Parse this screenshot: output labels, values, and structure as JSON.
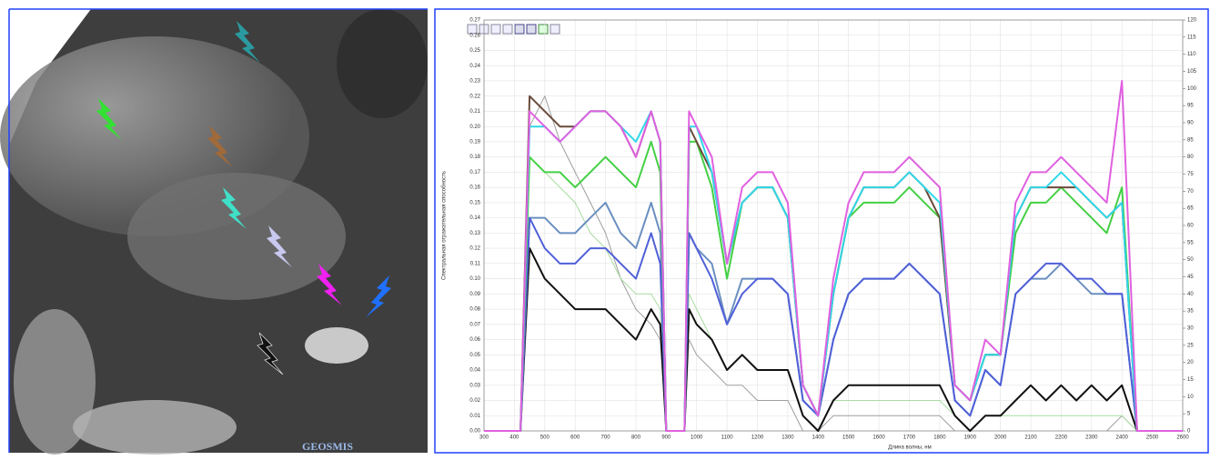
{
  "page": {
    "watermark": "GEOSMIS"
  },
  "chart_data": {
    "type": "line",
    "x_label": "Длина волны, нм",
    "y_label": "Спектральная отражательная способность",
    "x": [
      300,
      400,
      420,
      450,
      500,
      550,
      600,
      650,
      700,
      750,
      800,
      850,
      880,
      900,
      960,
      975,
      1000,
      1050,
      1100,
      1150,
      1200,
      1250,
      1300,
      1350,
      1400,
      1450,
      1500,
      1550,
      1600,
      1650,
      1700,
      1750,
      1800,
      1850,
      1900,
      1950,
      2000,
      2050,
      2100,
      2150,
      2200,
      2250,
      2300,
      2350,
      2400,
      2450,
      2500,
      2600
    ],
    "series": [
      {
        "color": "#9e9e9e",
        "width": 1,
        "values": [
          0,
          0,
          0,
          0.2,
          0.22,
          0.19,
          0.17,
          0.15,
          0.13,
          0.1,
          0.08,
          0.07,
          0.06,
          0,
          0,
          0.06,
          0.05,
          0.04,
          0.03,
          0.03,
          0.02,
          0.02,
          0.02,
          0,
          0,
          0.01,
          0.01,
          0.01,
          0.01,
          0.01,
          0.01,
          0.01,
          0.01,
          0,
          0,
          0,
          0,
          0,
          0,
          0,
          0,
          0,
          0,
          0,
          0.01,
          0,
          0,
          0
        ]
      },
      {
        "color": "#a8dca0",
        "width": 1,
        "values": [
          0,
          0,
          0,
          0.18,
          0.17,
          0.16,
          0.15,
          0.13,
          0.12,
          0.1,
          0.09,
          0.09,
          0.08,
          0,
          0,
          0.09,
          0.08,
          0.06,
          0.04,
          0.05,
          0.04,
          0.04,
          0.04,
          0.01,
          0,
          0.02,
          0.02,
          0.02,
          0.02,
          0.02,
          0.02,
          0.02,
          0.02,
          0.01,
          0,
          0.01,
          0.01,
          0.01,
          0.01,
          0.01,
          0.01,
          0.01,
          0.01,
          0.01,
          0.01,
          0,
          0,
          0
        ]
      },
      {
        "color": "#111111",
        "width": 2,
        "values": [
          0,
          0,
          0,
          0.12,
          0.1,
          0.09,
          0.08,
          0.08,
          0.08,
          0.07,
          0.06,
          0.08,
          0.07,
          0,
          0,
          0.08,
          0.07,
          0.06,
          0.04,
          0.05,
          0.04,
          0.04,
          0.04,
          0.01,
          0,
          0.02,
          0.03,
          0.03,
          0.03,
          0.03,
          0.03,
          0.03,
          0.03,
          0.01,
          0,
          0.01,
          0.01,
          0.02,
          0.03,
          0.02,
          0.03,
          0.02,
          0.03,
          0.02,
          0.03,
          0,
          0,
          0
        ]
      },
      {
        "color": "#6a8fc0",
        "width": 2,
        "values": [
          0,
          0,
          0,
          0.14,
          0.14,
          0.13,
          0.13,
          0.14,
          0.15,
          0.13,
          0.12,
          0.15,
          0.13,
          0,
          0,
          0.13,
          0.12,
          0.11,
          0.07,
          0.1,
          0.1,
          0.1,
          0.09,
          0.02,
          0.01,
          0.06,
          0.09,
          0.1,
          0.1,
          0.1,
          0.11,
          0.1,
          0.09,
          0.02,
          0.01,
          0.04,
          0.03,
          0.09,
          0.1,
          0.1,
          0.11,
          0.1,
          0.09,
          0.09,
          0.09,
          0,
          0,
          0
        ]
      },
      {
        "color": "#5060d8",
        "width": 2,
        "values": [
          0,
          0,
          0,
          0.14,
          0.12,
          0.11,
          0.11,
          0.12,
          0.12,
          0.11,
          0.1,
          0.13,
          0.11,
          0,
          0,
          0.13,
          0.12,
          0.1,
          0.07,
          0.09,
          0.1,
          0.1,
          0.09,
          0.02,
          0.01,
          0.06,
          0.09,
          0.1,
          0.1,
          0.1,
          0.11,
          0.1,
          0.09,
          0.02,
          0.01,
          0.04,
          0.03,
          0.09,
          0.1,
          0.11,
          0.11,
          0.1,
          0.1,
          0.09,
          0.09,
          0,
          0,
          0
        ]
      },
      {
        "color": "#44d044",
        "width": 2,
        "values": [
          0,
          0,
          0,
          0.18,
          0.17,
          0.17,
          0.16,
          0.17,
          0.18,
          0.17,
          0.16,
          0.19,
          0.17,
          0,
          0,
          0.19,
          0.19,
          0.16,
          0.1,
          0.15,
          0.16,
          0.16,
          0.14,
          0.03,
          0.01,
          0.09,
          0.14,
          0.15,
          0.15,
          0.15,
          0.16,
          0.15,
          0.14,
          0.03,
          0.02,
          0.05,
          0.05,
          0.13,
          0.15,
          0.15,
          0.16,
          0.15,
          0.14,
          0.13,
          0.16,
          0,
          0,
          0
        ]
      },
      {
        "color": "#6b4a3a",
        "width": 2,
        "values": [
          0,
          0,
          0,
          0.22,
          0.21,
          0.2,
          0.2,
          0.21,
          0.21,
          0.2,
          0.18,
          0.21,
          0.19,
          0,
          0,
          0.2,
          0.19,
          0.17,
          0.11,
          0.15,
          0.16,
          0.16,
          0.14,
          0.03,
          0.01,
          0.09,
          0.14,
          0.16,
          0.16,
          0.16,
          0.17,
          0.16,
          0.14,
          0.03,
          0.02,
          0.05,
          0.05,
          0.14,
          0.16,
          0.16,
          0.16,
          0.16,
          0.15,
          0.14,
          0.15,
          0,
          0,
          0
        ]
      },
      {
        "color": "#30d8e8",
        "width": 2,
        "values": [
          0,
          0,
          0,
          0.2,
          0.2,
          0.19,
          0.2,
          0.21,
          0.21,
          0.2,
          0.19,
          0.21,
          0.19,
          0,
          0,
          0.2,
          0.2,
          0.17,
          0.11,
          0.15,
          0.16,
          0.16,
          0.14,
          0.03,
          0.01,
          0.09,
          0.14,
          0.16,
          0.16,
          0.16,
          0.17,
          0.16,
          0.15,
          0.03,
          0.02,
          0.05,
          0.05,
          0.14,
          0.16,
          0.16,
          0.17,
          0.16,
          0.15,
          0.14,
          0.15,
          0,
          0,
          0
        ]
      },
      {
        "color": "#e060e0",
        "width": 2,
        "values": [
          0,
          0,
          0,
          0.21,
          0.2,
          0.19,
          0.2,
          0.21,
          0.21,
          0.2,
          0.18,
          0.21,
          0.19,
          0,
          0,
          0.21,
          0.2,
          0.18,
          0.11,
          0.16,
          0.17,
          0.17,
          0.15,
          0.03,
          0.01,
          0.1,
          0.15,
          0.17,
          0.17,
          0.17,
          0.18,
          0.17,
          0.16,
          0.03,
          0.02,
          0.06,
          0.05,
          0.15,
          0.17,
          0.17,
          0.18,
          0.17,
          0.16,
          0.15,
          0.23,
          0,
          0,
          0
        ]
      }
    ],
    "xlim": [
      300,
      2600
    ],
    "xticks": [
      300,
      400,
      500,
      600,
      700,
      800,
      900,
      1000,
      1100,
      1200,
      1300,
      1400,
      1500,
      1600,
      1700,
      1800,
      1900,
      2000,
      2100,
      2200,
      2300,
      2400,
      2500,
      2600
    ],
    "ylim": [
      0,
      0.27
    ],
    "yticks": [
      {
        "value": 0,
        "label": "0.00"
      },
      {
        "value": 0.01,
        "label": "0.01"
      },
      {
        "value": 0.02,
        "label": "0.02"
      },
      {
        "value": 0.03,
        "label": "0.03"
      },
      {
        "value": 0.04,
        "label": "0.04"
      },
      {
        "value": 0.05,
        "label": "0.05"
      },
      {
        "value": 0.06,
        "label": "0.06"
      },
      {
        "value": 0.07,
        "label": "0.07"
      },
      {
        "value": 0.08,
        "label": "0.08"
      },
      {
        "value": 0.09,
        "label": "0.09"
      },
      {
        "value": 0.1,
        "label": "0.10"
      },
      {
        "value": 0.11,
        "label": "0.11"
      },
      {
        "value": 0.12,
        "label": "0.12"
      },
      {
        "value": 0.13,
        "label": "0.13"
      },
      {
        "value": 0.14,
        "label": "0.14"
      },
      {
        "value": 0.15,
        "label": "0.15"
      },
      {
        "value": 0.16,
        "label": "0.16"
      },
      {
        "value": 0.17,
        "label": "0.17"
      },
      {
        "value": 0.18,
        "label": "0.18"
      },
      {
        "value": 0.19,
        "label": "0.19"
      },
      {
        "value": 0.2,
        "label": "0.20"
      },
      {
        "value": 0.21,
        "label": "0.21"
      },
      {
        "value": 0.22,
        "label": "0.22"
      },
      {
        "value": 0.23,
        "label": "0.23"
      },
      {
        "value": 0.24,
        "label": "0.24"
      },
      {
        "value": 0.25,
        "label": "0.25"
      },
      {
        "value": 0.26,
        "label": "0.26"
      },
      {
        "value": 0.27,
        "label": "0.27"
      }
    ],
    "y2lim": [
      0,
      120
    ],
    "y2ticks": [
      0,
      5,
      10,
      15,
      20,
      25,
      30,
      35,
      40,
      45,
      50,
      55,
      60,
      65,
      70,
      75,
      80,
      85,
      90,
      95,
      100,
      105,
      110,
      115,
      120
    ],
    "grid": true
  }
}
